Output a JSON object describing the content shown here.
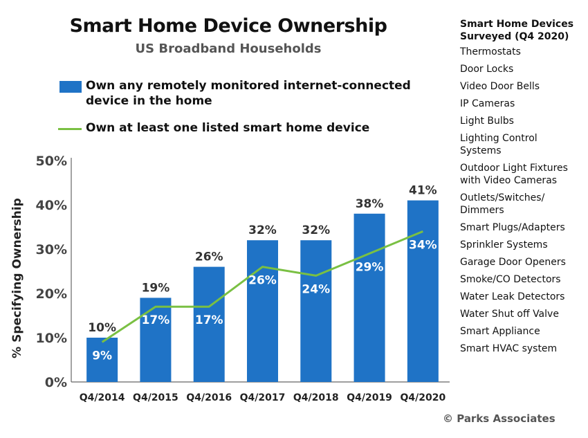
{
  "chart_data": {
    "type": "bar",
    "title": "Smart Home Device Ownership",
    "subtitle": "US Broadband Households",
    "categories": [
      "Q4/2014",
      "Q4/2015",
      "Q4/2016",
      "Q4/2017",
      "Q4/2018",
      "Q4/2019",
      "Q4/2020"
    ],
    "series": [
      {
        "name": "Own any remotely monitored internet-connected device in the home",
        "kind": "bar",
        "color": "#1f73c6",
        "values": [
          10,
          19,
          26,
          32,
          32,
          38,
          41
        ],
        "labels": [
          "10%",
          "19%",
          "26%",
          "32%",
          "32%",
          "38%",
          "41%"
        ]
      },
      {
        "name": "Own at least one listed smart home device",
        "kind": "line",
        "color": "#7ac043",
        "values": [
          9,
          17,
          17,
          26,
          24,
          29,
          34
        ],
        "labels": [
          "9%",
          "17%",
          "17%",
          "26%",
          "24%",
          "29%",
          "34%"
        ]
      }
    ],
    "ylabel": "% Specifying Ownership",
    "xlabel": "",
    "ylim": [
      0,
      50
    ],
    "yticks": [
      "0%",
      "10%",
      "20%",
      "30%",
      "40%",
      "50%"
    ],
    "legend": {
      "bar_label_line1": "Own any remotely monitored internet-connected",
      "bar_label_line2": "device in the home",
      "line_label": "Own at least one listed smart home device",
      "placement": "top"
    }
  },
  "side_panel": {
    "title_line1": "Smart Home Devices",
    "title_line2": "Surveyed (Q4 2020)",
    "items": [
      [
        "Thermostats"
      ],
      [
        "Door Locks"
      ],
      [
        "Video Door Bells"
      ],
      [
        "IP Cameras"
      ],
      [
        "Light Bulbs"
      ],
      [
        "Lighting Control",
        "Systems"
      ],
      [
        "Outdoor Light Fixtures",
        "with Video Cameras"
      ],
      [
        "Outlets/Switches/",
        "Dimmers"
      ],
      [
        "Smart Plugs/Adapters"
      ],
      [
        "Sprinkler Systems"
      ],
      [
        "Garage Door Openers"
      ],
      [
        "Smoke/CO Detectors"
      ],
      [
        "Water Leak Detectors"
      ],
      [
        "Water Shut off Valve"
      ],
      [
        "Smart Appliance"
      ],
      [
        "Smart HVAC system"
      ]
    ]
  },
  "copyright": "© Parks Associates"
}
